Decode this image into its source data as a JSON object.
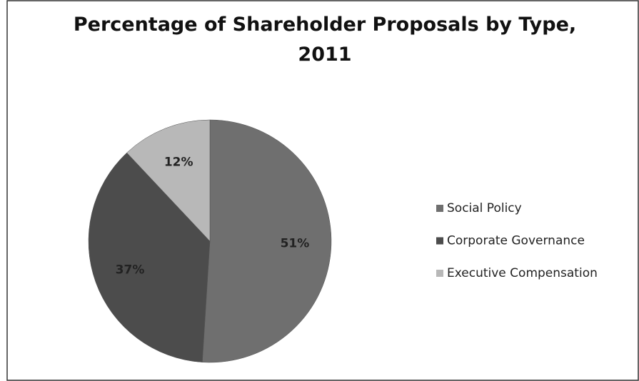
{
  "chart_data": {
    "type": "pie",
    "title": "Percentage of Shareholder Proposals by Type, 2011",
    "categories": [
      "Social Policy",
      "Corporate Governance",
      "Executive Compensation"
    ],
    "values": [
      51,
      37,
      12
    ],
    "value_labels": [
      "51%",
      "37%",
      "12%"
    ],
    "colors": [
      "#6f6f6f",
      "#4c4c4c",
      "#b8b8b8"
    ],
    "legend": "right"
  }
}
